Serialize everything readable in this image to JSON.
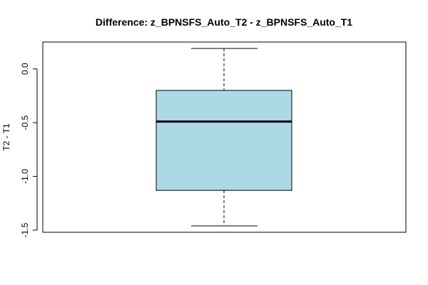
{
  "chart_data": {
    "type": "boxplot",
    "title": "Difference: z_BPNSFS_Auto_T2 - z_BPNSFS_Auto_T1",
    "ylabel": "T2 - T1",
    "xlabel": "",
    "ylim": [
      -1.52,
      0.25
    ],
    "yticks": [
      0.0,
      -0.5,
      -1.0,
      -1.5
    ],
    "ytick_labels": [
      "0.0",
      "-0.5",
      "-1.0",
      "-1.5"
    ],
    "box": {
      "min": -1.46,
      "q1": -1.13,
      "median": -0.49,
      "q3": -0.2,
      "max": 0.19
    },
    "box_color": "#ADD8E6",
    "grid": false
  }
}
